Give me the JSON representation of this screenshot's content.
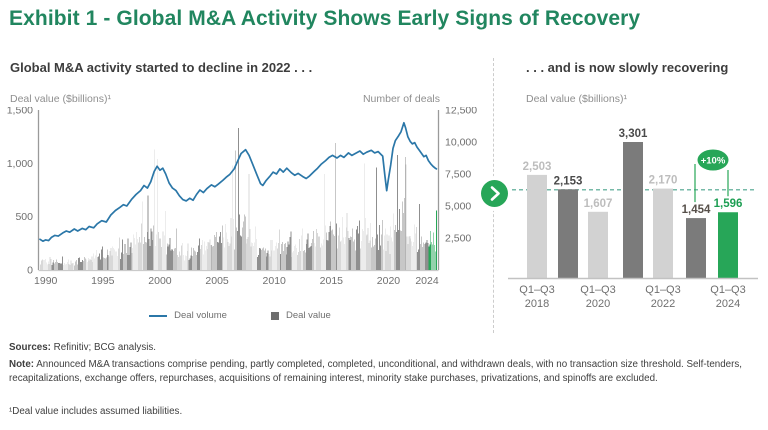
{
  "title": "Exhibit 1 - Global M&A Activity Shows Early Signs of Recovery",
  "colors": {
    "brand_green": "#21865f",
    "green": "#27a658",
    "line_blue": "#2b77a8",
    "bar_light": "#d8d8d8",
    "bar_dark": "#8f8f8f",
    "right_bar_light": "#d2d2d2",
    "right_bar_dark": "#7b7b7b",
    "label_light": "#bdbdbd",
    "label_dark": "#4a4a4a",
    "label_brown": "#57504a",
    "label_green": "#1d9e53",
    "teal_dash": "#4aa38c",
    "axis_gray": "#9a9a9a",
    "baseline_gray": "#c2c2c2",
    "tick_text": "#6f6f6f"
  },
  "left_panel": {
    "heading": "Global M&A activity started to decline in 2022 . . .",
    "y_left_label": "Deal value ($billions)¹",
    "y_right_label": "Number of deals",
    "legend": {
      "line_label": "Deal volume",
      "bar_label": "Deal value"
    }
  },
  "right_panel": {
    "heading": ". . . and is now slowly recovering",
    "y_label": "Deal value ($billions)¹",
    "badge": "+10%"
  },
  "footer": {
    "sources_label": "Sources:",
    "sources_text": " Refinitiv; BCG analysis.",
    "note_label": "Note:",
    "note_text": " Announced M&A transactions comprise pending, partly completed, completed, unconditional, and withdrawn deals, with no transaction size threshold. Self-tenders, recapitalizations, exchange offers, repurchases, acquisitions of remaining interest, minority stake purchases, privatizations, and spinoffs are excluded.",
    "footnote": "¹Deal value includes assumed liabilities."
  },
  "chart_data": [
    {
      "type": "combo",
      "title": "Global M&A activity started to decline in 2022 . . .",
      "x_range": [
        "1990-01",
        "2024-09"
      ],
      "x_ticks": [
        1990,
        1995,
        2000,
        2005,
        2010,
        2015,
        2020,
        2024
      ],
      "y_left": {
        "label": "Deal value ($billions)",
        "ticks": [
          0,
          500,
          1000,
          1500
        ],
        "range": [
          0,
          1500
        ]
      },
      "y_right": {
        "label": "Number of deals",
        "ticks": [
          2500,
          5000,
          7500,
          10000,
          12500
        ],
        "range": [
          0,
          12500
        ]
      },
      "bar_series": {
        "name": "Deal value",
        "unit": "$billions per month",
        "years": [
          1990,
          1991,
          1992,
          1993,
          1994,
          1995,
          1996,
          1997,
          1998,
          1999,
          2000,
          2001,
          2002,
          2003,
          2004,
          2005,
          2006,
          2007,
          2008,
          2009,
          2010,
          2011,
          2012,
          2013,
          2014,
          2015,
          2016,
          2017,
          2018,
          2019,
          2020,
          2021,
          2022,
          2023,
          2024
        ],
        "yearly_avg": [
          85,
          70,
          70,
          85,
          110,
          140,
          170,
          210,
          290,
          320,
          330,
          230,
          160,
          180,
          220,
          280,
          330,
          380,
          280,
          190,
          220,
          230,
          220,
          230,
          300,
          370,
          330,
          320,
          330,
          320,
          290,
          430,
          330,
          240,
          270
        ],
        "monthly_pattern": [
          0.72,
          0.85,
          1.02,
          0.88,
          1.08,
          1.18,
          0.92,
          0.78,
          1.12,
          0.98,
          1.22,
          1.38
        ],
        "spike_months": {
          "1998-12": 640,
          "1999-6": 700,
          "2000-1": 1130,
          "2000-4": 1040,
          "2006-11": 980,
          "2007-2": 1120,
          "2007-5": 1330,
          "2008-4": 900,
          "2014-11": 900,
          "2015-11": 1190,
          "2018-5": 1000,
          "2019-6": 960,
          "2021-4": 1080,
          "2021-12": 1060,
          "2022-1": 990,
          "2023-3": 620,
          "2024-9": 560
        },
        "highlight_year": 2024
      },
      "line_series": {
        "name": "Deal volume",
        "points": [
          [
            1990.0,
            2400
          ],
          [
            1990.25,
            2250
          ],
          [
            1990.5,
            2350
          ],
          [
            1990.75,
            2300
          ],
          [
            1991.0,
            2550
          ],
          [
            1991.3,
            2700
          ],
          [
            1991.6,
            2650
          ],
          [
            1992.0,
            2900
          ],
          [
            1992.3,
            3050
          ],
          [
            1992.6,
            2950
          ],
          [
            1993.0,
            3200
          ],
          [
            1993.3,
            3050
          ],
          [
            1993.7,
            3250
          ],
          [
            1994.0,
            3150
          ],
          [
            1994.3,
            3400
          ],
          [
            1994.7,
            3300
          ],
          [
            1995.0,
            3600
          ],
          [
            1995.4,
            3850
          ],
          [
            1995.8,
            3750
          ],
          [
            1996.2,
            4300
          ],
          [
            1996.6,
            4650
          ],
          [
            1997.0,
            4900
          ],
          [
            1997.3,
            5100
          ],
          [
            1997.6,
            5000
          ],
          [
            1998.0,
            5500
          ],
          [
            1998.4,
            5900
          ],
          [
            1998.8,
            6200
          ],
          [
            1999.1,
            6600
          ],
          [
            1999.4,
            6400
          ],
          [
            1999.7,
            6900
          ],
          [
            2000.0,
            7700
          ],
          [
            2000.25,
            8100
          ],
          [
            2000.5,
            7800
          ],
          [
            2000.75,
            7950
          ],
          [
            2001.0,
            7500
          ],
          [
            2001.3,
            6800
          ],
          [
            2001.6,
            6400
          ],
          [
            2001.9,
            6200
          ],
          [
            2002.2,
            5800
          ],
          [
            2002.5,
            5500
          ],
          [
            2002.8,
            5400
          ],
          [
            2003.1,
            5600
          ],
          [
            2003.4,
            5450
          ],
          [
            2003.7,
            5900
          ],
          [
            2004.0,
            6250
          ],
          [
            2004.3,
            6050
          ],
          [
            2004.6,
            6350
          ],
          [
            2005.0,
            6650
          ],
          [
            2005.3,
            6500
          ],
          [
            2005.6,
            6700
          ],
          [
            2006.0,
            7000
          ],
          [
            2006.3,
            7250
          ],
          [
            2006.6,
            7450
          ],
          [
            2007.0,
            7900
          ],
          [
            2007.3,
            8500
          ],
          [
            2007.6,
            9100
          ],
          [
            2008.0,
            9400
          ],
          [
            2008.3,
            8950
          ],
          [
            2008.6,
            8300
          ],
          [
            2009.0,
            7400
          ],
          [
            2009.3,
            6750
          ],
          [
            2009.5,
            6600
          ],
          [
            2009.8,
            7000
          ],
          [
            2010.1,
            7300
          ],
          [
            2010.4,
            7650
          ],
          [
            2010.7,
            7500
          ],
          [
            2011.0,
            7900
          ],
          [
            2011.3,
            7650
          ],
          [
            2011.6,
            7950
          ],
          [
            2012.0,
            7600
          ],
          [
            2012.3,
            7400
          ],
          [
            2012.6,
            7550
          ],
          [
            2013.0,
            7300
          ],
          [
            2013.3,
            7150
          ],
          [
            2013.6,
            7350
          ],
          [
            2014.0,
            7700
          ],
          [
            2014.3,
            7950
          ],
          [
            2014.6,
            8250
          ],
          [
            2015.0,
            8550
          ],
          [
            2015.3,
            8800
          ],
          [
            2015.6,
            8950
          ],
          [
            2016.0,
            8750
          ],
          [
            2016.3,
            8950
          ],
          [
            2016.6,
            8800
          ],
          [
            2017.0,
            9150
          ],
          [
            2017.3,
            8950
          ],
          [
            2017.6,
            9100
          ],
          [
            2018.0,
            9300
          ],
          [
            2018.3,
            9050
          ],
          [
            2018.6,
            9200
          ],
          [
            2019.0,
            9350
          ],
          [
            2019.3,
            9150
          ],
          [
            2019.6,
            9250
          ],
          [
            2020.0,
            8900
          ],
          [
            2020.2,
            7300
          ],
          [
            2020.35,
            6200
          ],
          [
            2020.5,
            7100
          ],
          [
            2020.7,
            8200
          ],
          [
            2020.9,
            9500
          ],
          [
            2021.1,
            10100
          ],
          [
            2021.4,
            10500
          ],
          [
            2021.6,
            10800
          ],
          [
            2021.85,
            11500
          ],
          [
            2022.0,
            11100
          ],
          [
            2022.2,
            10400
          ],
          [
            2022.4,
            10050
          ],
          [
            2022.6,
            9850
          ],
          [
            2022.8,
            9950
          ],
          [
            2023.0,
            9600
          ],
          [
            2023.2,
            9350
          ],
          [
            2023.4,
            9100
          ],
          [
            2023.6,
            8850
          ],
          [
            2023.8,
            8950
          ],
          [
            2024.0,
            8550
          ],
          [
            2024.2,
            8300
          ],
          [
            2024.4,
            8100
          ],
          [
            2024.6,
            7950
          ],
          [
            2024.7,
            7900
          ]
        ]
      },
      "legend": [
        "Deal volume",
        "Deal value"
      ]
    },
    {
      "type": "bar",
      "title": ". . . and is now slowly recovering",
      "ylabel": "Deal value ($billions)",
      "categories": [
        "2018",
        "2019",
        "2020",
        "2021",
        "2022",
        "2023",
        "2024"
      ],
      "values": [
        2503,
        2153,
        1607,
        3301,
        2170,
        1454,
        1596
      ],
      "labels": [
        "2,503",
        "2,153",
        "1,607",
        "3,301",
        "2,170",
        "1,454",
        "1,596"
      ],
      "bar_color_keys": [
        "light",
        "dark",
        "light",
        "dark",
        "light",
        "dark",
        "green"
      ],
      "label_color_keys": [
        "light",
        "dark",
        "light",
        "dark",
        "light",
        "brown",
        "green"
      ],
      "x_tick_labels": [
        {
          "line1": "Q1–Q3",
          "line2": "2018",
          "bar_index": 0
        },
        {
          "line1": "Q1–Q3",
          "line2": "2020",
          "bar_index": 2
        },
        {
          "line1": "Q1–Q3",
          "line2": "2022",
          "bar_index": 4
        },
        {
          "line1": "Q1–Q3",
          "line2": "2024",
          "bar_index": 6
        }
      ],
      "ylim": [
        0,
        3500
      ],
      "reference_line_value": 2140,
      "annotation": {
        "text": "+10%",
        "from_bar": 5,
        "to_bar": 6
      }
    }
  ]
}
